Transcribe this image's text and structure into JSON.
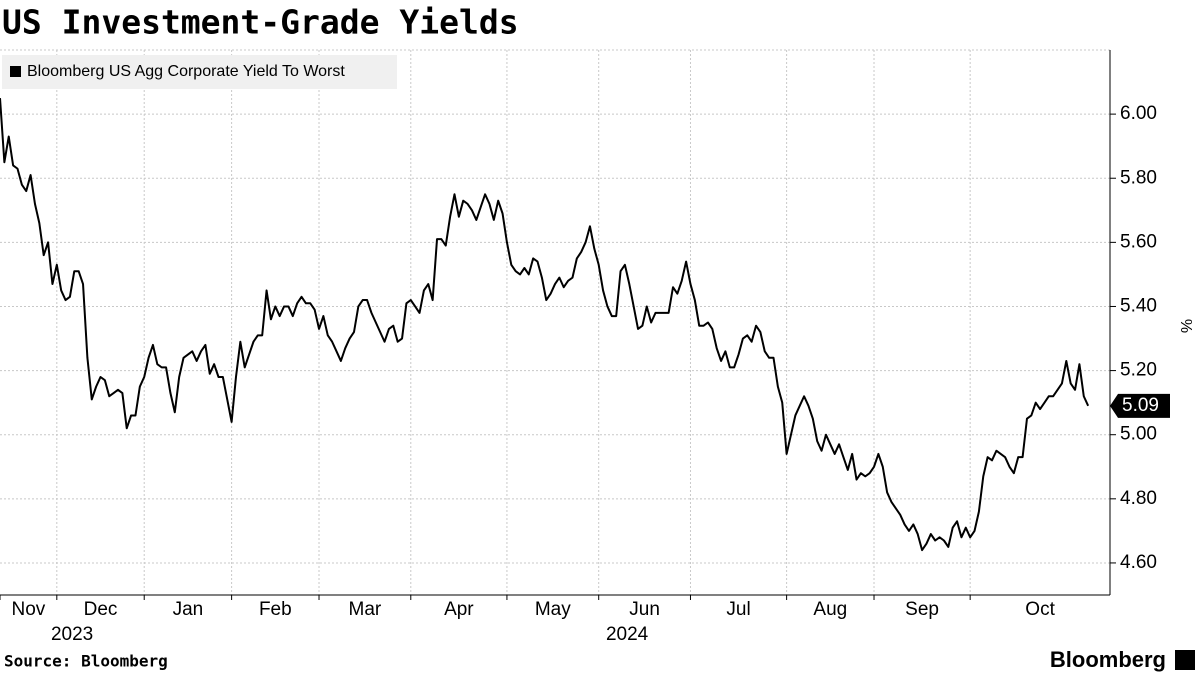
{
  "chart_data": {
    "type": "line",
    "title": "US Investment-Grade Yields",
    "source": "Source: Bloomberg",
    "brand": "Bloomberg",
    "y_unit": "%",
    "series": [
      {
        "name": "Bloomberg US Agg Corporate Yield To Worst",
        "color": "#000000",
        "values": [
          6.05,
          5.85,
          5.93,
          5.84,
          5.83,
          5.78,
          5.76,
          5.81,
          5.72,
          5.66,
          5.56,
          5.6,
          5.47,
          5.53,
          5.45,
          5.42,
          5.43,
          5.51,
          5.51,
          5.47,
          5.24,
          5.11,
          5.15,
          5.18,
          5.17,
          5.12,
          5.13,
          5.14,
          5.13,
          5.02,
          5.06,
          5.06,
          5.15,
          5.18,
          5.24,
          5.28,
          5.22,
          5.21,
          5.21,
          5.13,
          5.07,
          5.18,
          5.24,
          5.25,
          5.26,
          5.23,
          5.26,
          5.28,
          5.19,
          5.22,
          5.18,
          5.18,
          5.11,
          5.04,
          5.18,
          5.29,
          5.21,
          5.25,
          5.29,
          5.31,
          5.31,
          5.45,
          5.36,
          5.4,
          5.37,
          5.4,
          5.4,
          5.37,
          5.41,
          5.43,
          5.41,
          5.41,
          5.39,
          5.33,
          5.37,
          5.31,
          5.29,
          5.26,
          5.23,
          5.27,
          5.3,
          5.32,
          5.4,
          5.42,
          5.42,
          5.38,
          5.35,
          5.32,
          5.29,
          5.33,
          5.34,
          5.29,
          5.3,
          5.41,
          5.42,
          5.4,
          5.38,
          5.45,
          5.47,
          5.42,
          5.61,
          5.61,
          5.59,
          5.68,
          5.75,
          5.68,
          5.73,
          5.72,
          5.7,
          5.67,
          5.71,
          5.75,
          5.72,
          5.67,
          5.73,
          5.69,
          5.6,
          5.53,
          5.51,
          5.5,
          5.52,
          5.5,
          5.55,
          5.54,
          5.49,
          5.42,
          5.44,
          5.47,
          5.49,
          5.46,
          5.48,
          5.49,
          5.55,
          5.57,
          5.6,
          5.65,
          5.58,
          5.53,
          5.45,
          5.4,
          5.37,
          5.37,
          5.51,
          5.53,
          5.47,
          5.4,
          5.33,
          5.34,
          5.4,
          5.35,
          5.38,
          5.38,
          5.38,
          5.38,
          5.46,
          5.44,
          5.48,
          5.54,
          5.47,
          5.42,
          5.34,
          5.34,
          5.35,
          5.33,
          5.27,
          5.23,
          5.26,
          5.21,
          5.21,
          5.25,
          5.3,
          5.31,
          5.29,
          5.34,
          5.32,
          5.26,
          5.24,
          5.24,
          5.15,
          5.1,
          4.94,
          5.0,
          5.06,
          5.09,
          5.12,
          5.09,
          5.05,
          4.98,
          4.95,
          5.0,
          4.97,
          4.94,
          4.97,
          4.93,
          4.89,
          4.94,
          4.86,
          4.88,
          4.87,
          4.88,
          4.9,
          4.94,
          4.9,
          4.82,
          4.79,
          4.77,
          4.75,
          4.72,
          4.7,
          4.72,
          4.69,
          4.64,
          4.66,
          4.69,
          4.67,
          4.68,
          4.67,
          4.65,
          4.71,
          4.73,
          4.68,
          4.71,
          4.68,
          4.7,
          4.76,
          4.87,
          4.93,
          4.92,
          4.95,
          4.94,
          4.93,
          4.9,
          4.88,
          4.93,
          4.93,
          5.05,
          5.06,
          5.1,
          5.08,
          5.1,
          5.12,
          5.12,
          5.14,
          5.16,
          5.23,
          5.16,
          5.14,
          5.22,
          5.12,
          5.09
        ]
      }
    ],
    "xlim": [
      0,
      254
    ],
    "xticks": [
      {
        "value": 0,
        "label": "Nov"
      },
      {
        "value": 13,
        "label": "Dec"
      },
      {
        "value": 33,
        "label": "Jan"
      },
      {
        "value": 53,
        "label": "Feb"
      },
      {
        "value": 73,
        "label": "Mar"
      },
      {
        "value": 94,
        "label": "Apr"
      },
      {
        "value": 116,
        "label": "May"
      },
      {
        "value": 137,
        "label": "Jun"
      },
      {
        "value": 158,
        "label": "Jul"
      },
      {
        "value": 180,
        "label": "Aug"
      },
      {
        "value": 200,
        "label": "Sep"
      },
      {
        "value": 222,
        "label": "Oct"
      }
    ],
    "years": [
      {
        "label": "2023",
        "start": 0
      },
      {
        "label": "2024",
        "start": 33
      }
    ],
    "ylim": [
      4.5,
      6.2
    ],
    "yticks": [
      {
        "value": 4.6,
        "label": "4.60"
      },
      {
        "value": 4.8,
        "label": "4.80"
      },
      {
        "value": 5.0,
        "label": "5.00"
      },
      {
        "value": 5.2,
        "label": "5.20"
      },
      {
        "value": 5.4,
        "label": "5.40"
      },
      {
        "value": 5.6,
        "label": "5.60"
      },
      {
        "value": 5.8,
        "label": "5.80"
      },
      {
        "value": 6.0,
        "label": "6.00"
      }
    ],
    "grid": true,
    "legend": "top-left"
  }
}
